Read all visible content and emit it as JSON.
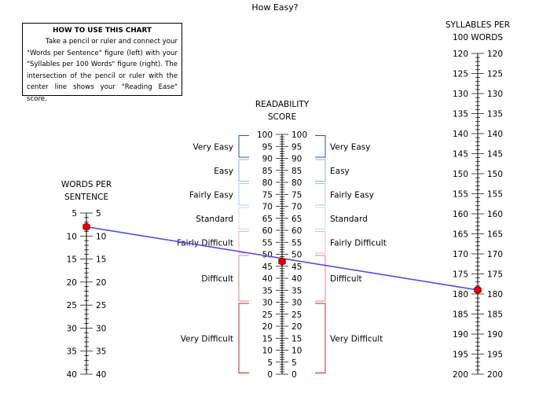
{
  "chart_data": {
    "type": "nomogram",
    "title": "How Easy?",
    "instructions": {
      "title": "HOW TO USE THIS CHART",
      "body": "Take a pencil or ruler and connect your \"Words  per Sentence\" figure (left) with your \"Syllables  per 100 Words\" figure (right). The intersection  of  the  pencil  or ruler with the center line shows your \"Reading Ease\" score."
    },
    "axes": {
      "words_per_sentence": {
        "label_line1": "WORDS PER",
        "label_line2": "SENTENCE",
        "range": [
          5,
          40
        ],
        "major_step": 5,
        "tick_labels": [
          "5",
          "10",
          "15",
          "20",
          "25",
          "30",
          "35",
          "40"
        ]
      },
      "readability_score": {
        "label_line1": "READABILITY",
        "label_line2": "SCORE",
        "range": [
          0,
          100
        ],
        "major_step": 5,
        "tick_labels": [
          "0",
          "5",
          "10",
          "15",
          "20",
          "25",
          "30",
          "35",
          "40",
          "45",
          "50",
          "55",
          "60",
          "65",
          "70",
          "75",
          "80",
          "85",
          "90",
          "95",
          "100"
        ]
      },
      "syllables_per_100_words": {
        "label_line1": "SYLLABLES PER",
        "label_line2": "100 WORDS",
        "range": [
          120,
          200
        ],
        "major_step": 5,
        "tick_labels": [
          "120",
          "125",
          "130",
          "135",
          "140",
          "145",
          "150",
          "155",
          "160",
          "165",
          "170",
          "175",
          "180",
          "185",
          "190",
          "195",
          "200"
        ]
      }
    },
    "bands": [
      {
        "label": "Very Easy",
        "from": 90,
        "to": 100,
        "color": "#3848b8"
      },
      {
        "label": "Easy",
        "from": 80,
        "to": 90,
        "color": "#98b0d8"
      },
      {
        "label": "Fairly Easy",
        "from": 70,
        "to": 80,
        "color": "#b0c8e0"
      },
      {
        "label": "Standard",
        "from": 60,
        "to": 70,
        "color": "#d0d8e4"
      },
      {
        "label": "Fairly Difficult",
        "from": 50,
        "to": 60,
        "color": "#e8b8b8"
      },
      {
        "label": "Difficult",
        "from": 30,
        "to": 50,
        "color": "#d88888"
      },
      {
        "label": "Very Difficult",
        "from": 0,
        "to": 30,
        "color": "#c82020"
      }
    ],
    "reading": {
      "words_per_sentence": 8,
      "syllables_per_100_words": 179,
      "readability_score": 47,
      "line_color": "#5050e0",
      "marker_color": "#dd0000"
    }
  }
}
